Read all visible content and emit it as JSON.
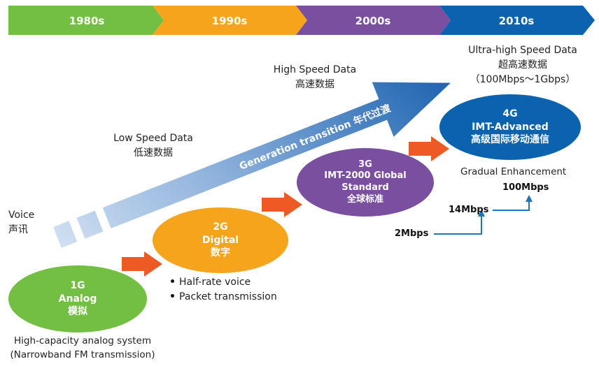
{
  "colors": {
    "green": "#73bf44",
    "orange": "#f7a41d",
    "purple": "#7b4f9f",
    "blue": "#0b63b0",
    "arrow_orange": "#ee5a24",
    "rate_line": "#1a75bb"
  },
  "eras": [
    "1980s",
    "1990s",
    "2000s",
    "2010s"
  ],
  "big_arrow_label": "Generation transition 年代过渡",
  "data_levels": {
    "voice": [
      "Voice",
      "声讯"
    ],
    "low": [
      "Low Speed Data",
      "低速数据"
    ],
    "high": [
      "High Speed Data",
      "高速数据"
    ],
    "ultra": [
      "Ultra-high Speed Data",
      "超高速数据",
      "（100Mbps～1Gbps）"
    ]
  },
  "generations": {
    "g1": [
      "1G",
      "Analog",
      "模拟"
    ],
    "g2": [
      "2G",
      "Digital",
      "数字"
    ],
    "g3": [
      "3G",
      "IMT-2000 Global",
      "Standard",
      "全球标准"
    ],
    "g4": [
      "4G",
      "IMT-Advanced",
      "高级国际移动通信"
    ]
  },
  "g1_caption": [
    "High-capacity analog system",
    "(Narrowband FM transmission)"
  ],
  "g2_bullets": [
    "Half-rate voice",
    "Packet transmission"
  ],
  "gradual": "Gradual Enhancement",
  "rates": [
    "2Mbps",
    "14Mbps",
    "100Mbps"
  ]
}
